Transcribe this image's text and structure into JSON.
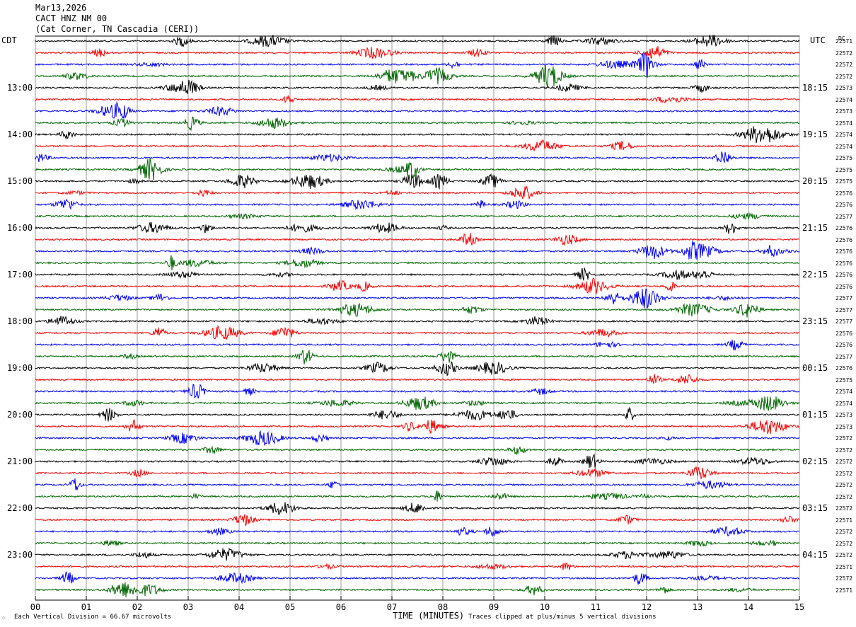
{
  "header": {
    "date": "Mar13,2026",
    "station": "CACT HNZ NM 00",
    "location": "(Cat Corner, TN Cascadia (CERI))"
  },
  "left_label": "CDT",
  "right_label": "UTC",
  "dc_label": "DC",
  "footer": {
    "scale": "Each Vertical Division =   66.67 microvolts",
    "clip": "Traces clipped at plus/minus 5 vertical divisions",
    "mark": "⁘"
  },
  "chart_data": {
    "type": "line",
    "title": "CACT HNZ NM 00",
    "xlabel": "TIME (MINUTES)",
    "ylabel": "",
    "xlim": [
      0,
      15
    ],
    "x_ticks": [
      "00",
      "01",
      "02",
      "03",
      "04",
      "05",
      "06",
      "07",
      "08",
      "09",
      "10",
      "11",
      "12",
      "13",
      "14",
      "15"
    ],
    "line_colors": [
      "#000000",
      "#ff0000",
      "#0000ff",
      "#006600"
    ],
    "grid": true,
    "left_hour_labels": [
      "13:00",
      "14:00",
      "15:00",
      "16:00",
      "17:00",
      "18:00",
      "19:00",
      "20:00",
      "21:00",
      "22:00",
      "23:00"
    ],
    "right_hour_labels": [
      "18:15",
      "19:15",
      "20:15",
      "21:15",
      "22:15",
      "23:15",
      "00:15",
      "01:15",
      "02:15",
      "03:15",
      "04:15"
    ],
    "trace_dc_offsets": [
      22571,
      22572,
      22572,
      22572,
      22573,
      22574,
      22573,
      22574,
      22574,
      22574,
      22575,
      22575,
      22575,
      22576,
      22576,
      22577,
      22576,
      22576,
      22576,
      22576,
      22576,
      22576,
      22577,
      22577,
      22577,
      22576,
      22576,
      22577,
      22576,
      22575,
      22574,
      22574,
      22573,
      22573,
      22572,
      22572,
      22572,
      22572,
      22572,
      22572,
      22572,
      22571,
      22572,
      22572,
      22572,
      22571,
      22572,
      22571
    ]
  }
}
